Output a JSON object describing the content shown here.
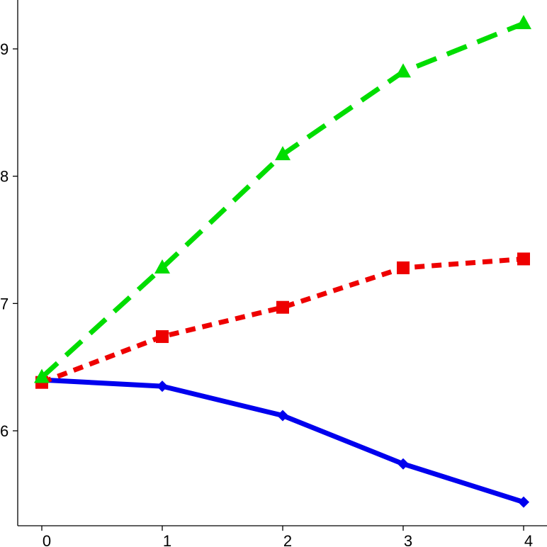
{
  "chart_data": {
    "type": "line",
    "title": "",
    "xlabel": "",
    "ylabel": "",
    "x": [
      0,
      1,
      2,
      3,
      4
    ],
    "xlim": [
      -0.2,
      4.2
    ],
    "ylim": [
      5.2,
      9.4
    ],
    "xticks": [
      0,
      1,
      2,
      3,
      4
    ],
    "yticks": [
      6,
      7,
      8,
      9
    ],
    "grid": false,
    "legend": "none",
    "series": [
      {
        "values": [
          6.4,
          6.35,
          6.12,
          5.74,
          5.44
        ],
        "color": "#0000ee",
        "line_style": "solid",
        "marker": "diamond"
      },
      {
        "values": [
          6.38,
          6.74,
          6.97,
          7.28,
          7.35
        ],
        "color": "#ee0000",
        "line_style": "dotted",
        "marker": "square"
      },
      {
        "values": [
          6.42,
          7.28,
          8.17,
          8.82,
          9.2
        ],
        "color": "#00dd00",
        "line_style": "dashed",
        "marker": "triangle"
      }
    ]
  }
}
